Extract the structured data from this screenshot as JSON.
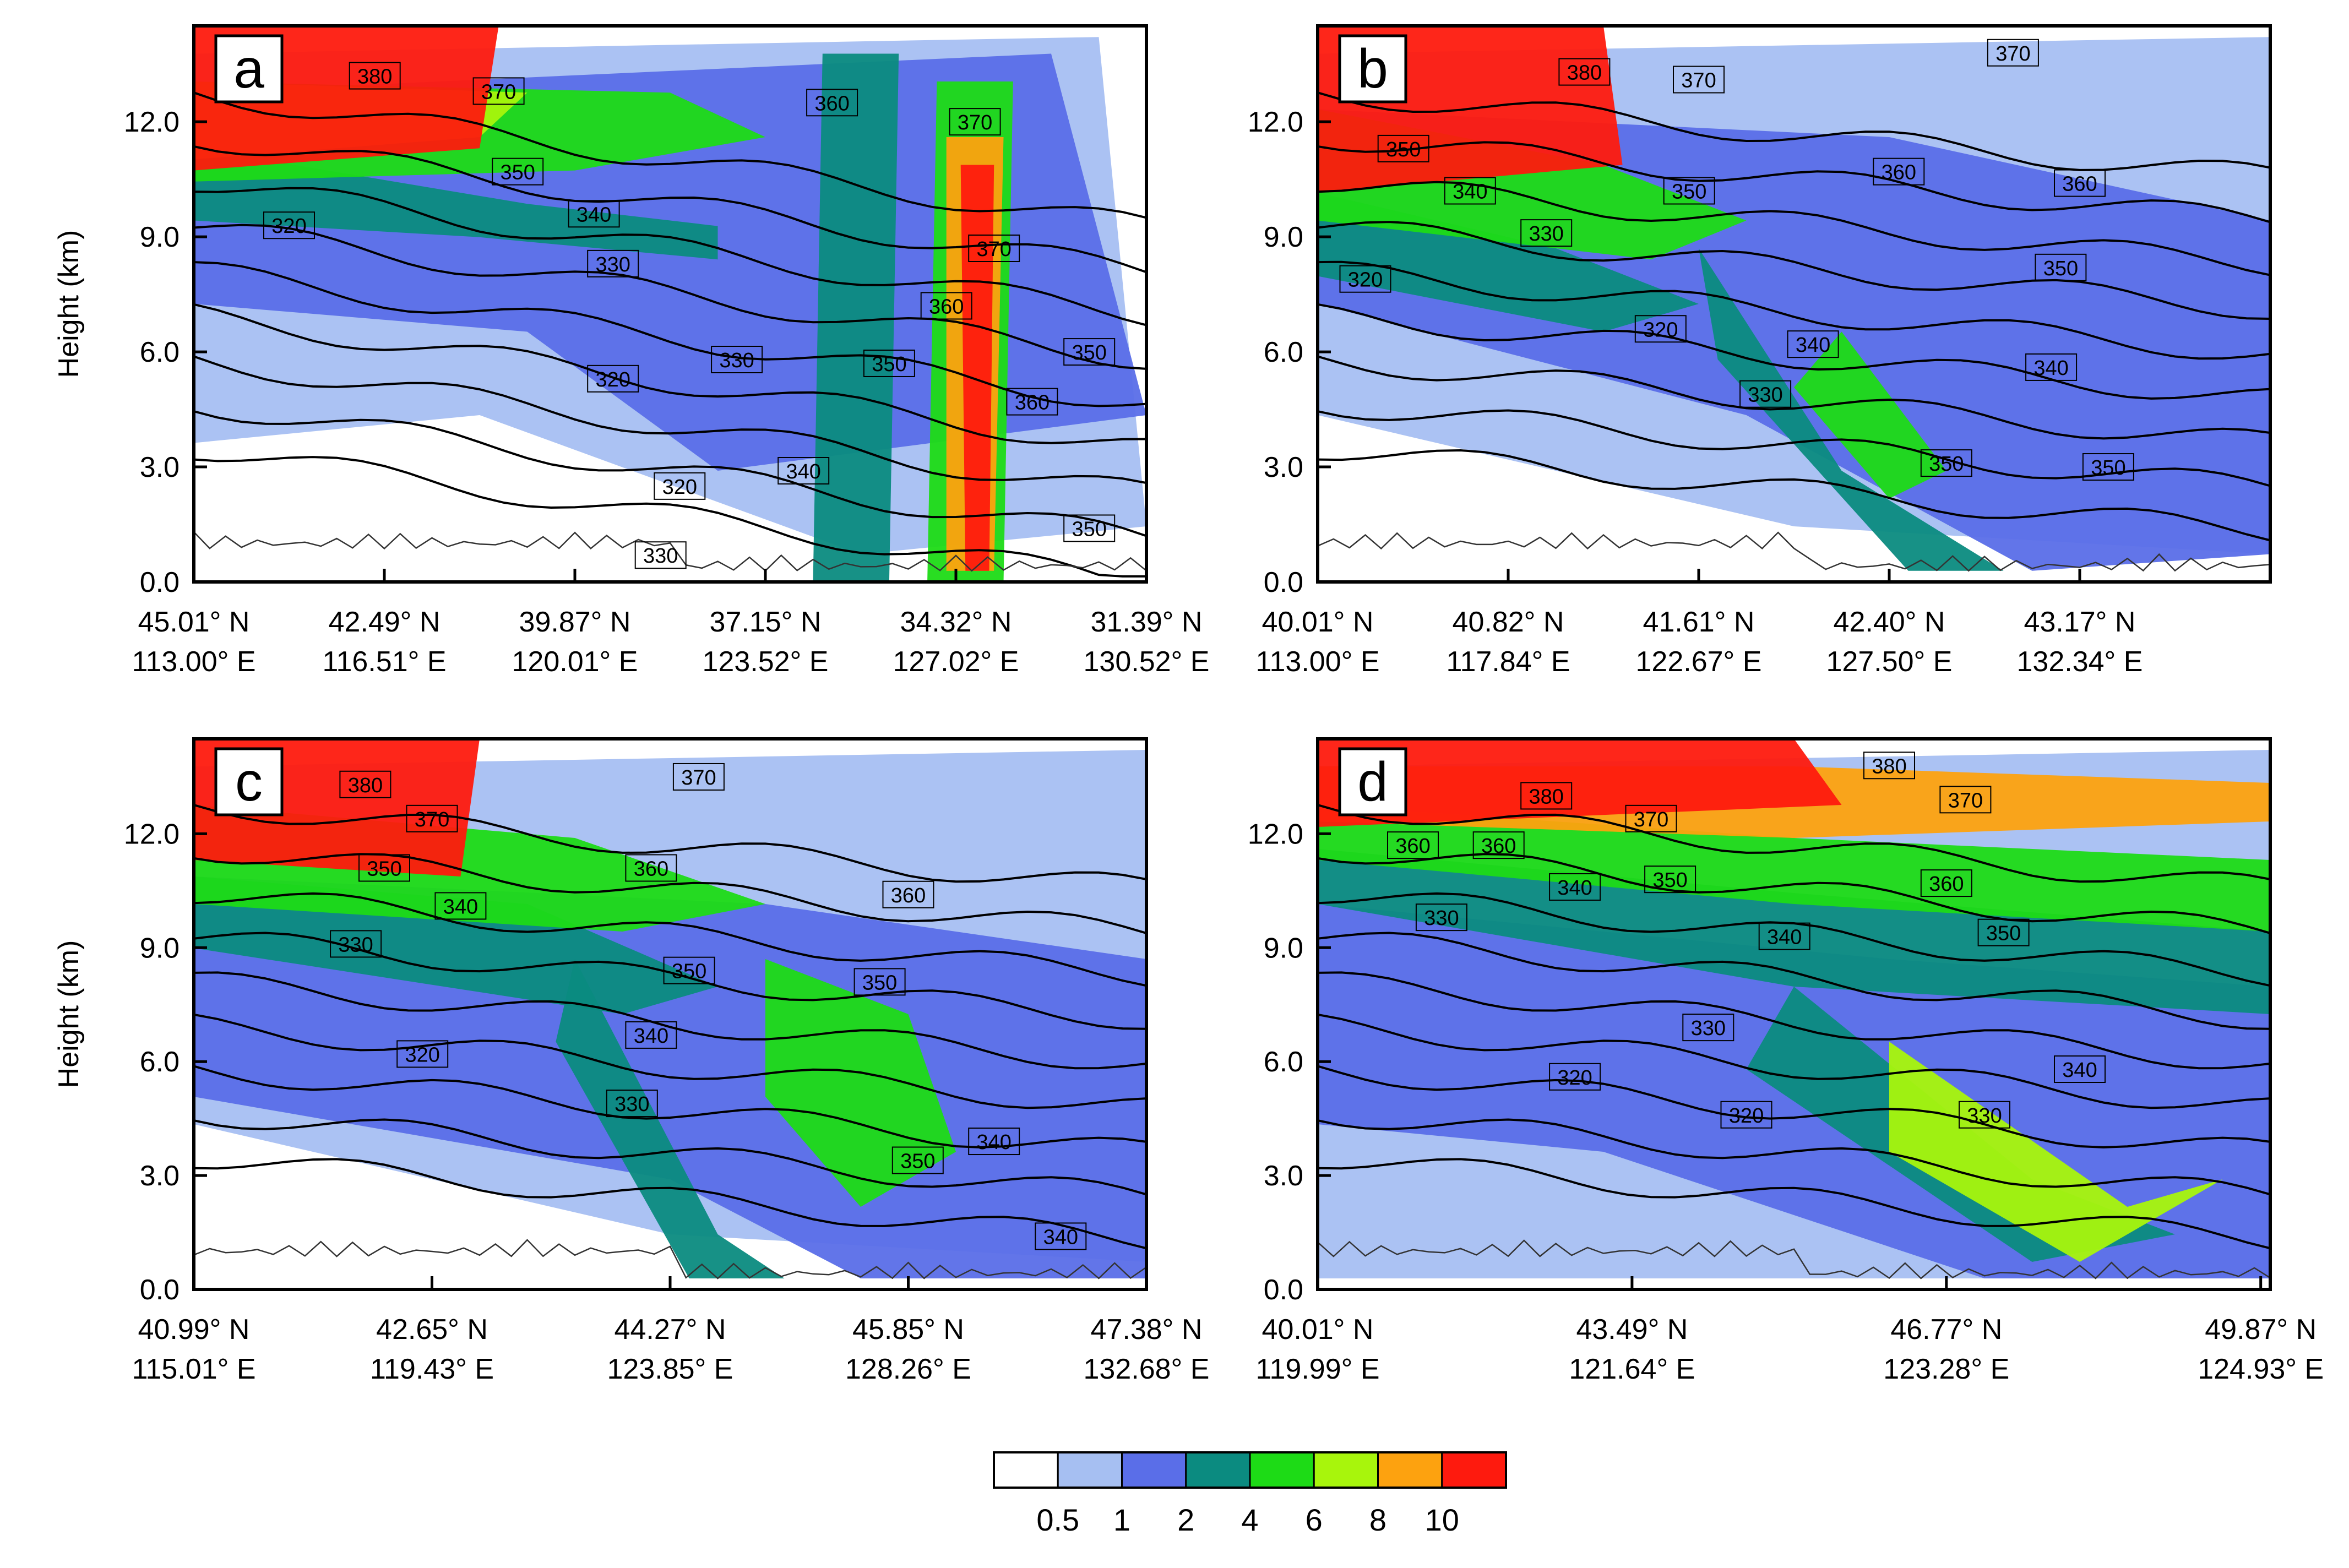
{
  "chart_data": [
    {
      "type": "heatmap",
      "panel_label": "a",
      "ylabel": "Height (km)",
      "ylim": [
        0,
        14.5
      ],
      "y_ticks": [
        "0.0",
        "3.0",
        "6.0",
        "9.0",
        "12.0"
      ],
      "y_tick_values": [
        0,
        3,
        6,
        9,
        12
      ],
      "x_ticks": [
        {
          "lat": "45.01° N",
          "lon": "113.00° E"
        },
        {
          "lat": "42.49° N",
          "lon": "116.51° E"
        },
        {
          "lat": "39.87° N",
          "lon": "120.01° E"
        },
        {
          "lat": "37.15° N",
          "lon": "123.52° E"
        },
        {
          "lat": "34.32° N",
          "lon": "127.02° E"
        },
        {
          "lat": "31.39° N",
          "lon": "130.52° E"
        }
      ],
      "x_tick_fractions": [
        0,
        0.2,
        0.4,
        0.6,
        0.8,
        1.0
      ],
      "contour_labels": [
        {
          "text": "380",
          "x": 0.19,
          "y": 13.2
        },
        {
          "text": "370",
          "x": 0.32,
          "y": 12.8
        },
        {
          "text": "360",
          "x": 0.67,
          "y": 12.5
        },
        {
          "text": "370",
          "x": 0.82,
          "y": 12.0
        },
        {
          "text": "350",
          "x": 0.34,
          "y": 10.7
        },
        {
          "text": "340",
          "x": 0.42,
          "y": 9.6
        },
        {
          "text": "320",
          "x": 0.1,
          "y": 9.3
        },
        {
          "text": "330",
          "x": 0.44,
          "y": 8.3
        },
        {
          "text": "370",
          "x": 0.84,
          "y": 8.7
        },
        {
          "text": "360",
          "x": 0.79,
          "y": 7.2
        },
        {
          "text": "330",
          "x": 0.57,
          "y": 5.8
        },
        {
          "text": "350",
          "x": 0.73,
          "y": 5.7
        },
        {
          "text": "350",
          "x": 0.94,
          "y": 6.0
        },
        {
          "text": "320",
          "x": 0.44,
          "y": 5.3
        },
        {
          "text": "360",
          "x": 0.88,
          "y": 4.7
        },
        {
          "text": "340",
          "x": 0.64,
          "y": 2.9
        },
        {
          "text": "320",
          "x": 0.51,
          "y": 2.5
        },
        {
          "text": "350",
          "x": 0.94,
          "y": 1.4
        },
        {
          "text": "330",
          "x": 0.49,
          "y": 0.7
        }
      ]
    },
    {
      "type": "heatmap",
      "panel_label": "b",
      "ylabel": "",
      "ylim": [
        0,
        14.5
      ],
      "y_ticks": [
        "0.0",
        "3.0",
        "6.0",
        "9.0",
        "12.0"
      ],
      "y_tick_values": [
        0,
        3,
        6,
        9,
        12
      ],
      "x_ticks": [
        {
          "lat": "40.01° N",
          "lon": "113.00° E"
        },
        {
          "lat": "40.82° N",
          "lon": "117.84° E"
        },
        {
          "lat": "41.61° N",
          "lon": "122.67° E"
        },
        {
          "lat": "42.40° N",
          "lon": "127.50° E"
        },
        {
          "lat": "43.17° N",
          "lon": "132.34° E"
        }
      ],
      "x_tick_fractions": [
        0,
        0.2,
        0.4,
        0.6,
        0.8
      ],
      "contour_labels": [
        {
          "text": "370",
          "x": 0.73,
          "y": 13.8
        },
        {
          "text": "380",
          "x": 0.28,
          "y": 13.3
        },
        {
          "text": "370",
          "x": 0.4,
          "y": 13.1
        },
        {
          "text": "350",
          "x": 0.09,
          "y": 11.3
        },
        {
          "text": "360",
          "x": 0.61,
          "y": 10.7
        },
        {
          "text": "360",
          "x": 0.8,
          "y": 10.4
        },
        {
          "text": "340",
          "x": 0.16,
          "y": 10.2
        },
        {
          "text": "350",
          "x": 0.39,
          "y": 10.2
        },
        {
          "text": "330",
          "x": 0.24,
          "y": 9.1
        },
        {
          "text": "350",
          "x": 0.78,
          "y": 8.2
        },
        {
          "text": "320",
          "x": 0.05,
          "y": 7.9
        },
        {
          "text": "320",
          "x": 0.36,
          "y": 6.6
        },
        {
          "text": "340",
          "x": 0.52,
          "y": 6.2
        },
        {
          "text": "340",
          "x": 0.77,
          "y": 5.6
        },
        {
          "text": "330",
          "x": 0.47,
          "y": 4.9
        },
        {
          "text": "350",
          "x": 0.66,
          "y": 3.1
        },
        {
          "text": "350",
          "x": 0.83,
          "y": 3.0
        }
      ]
    },
    {
      "type": "heatmap",
      "panel_label": "c",
      "ylabel": "Height (km)",
      "ylim": [
        0,
        14.5
      ],
      "y_ticks": [
        "0.0",
        "3.0",
        "6.0",
        "9.0",
        "12.0"
      ],
      "y_tick_values": [
        0,
        3,
        6,
        9,
        12
      ],
      "x_ticks": [
        {
          "lat": "40.99° N",
          "lon": "115.01° E"
        },
        {
          "lat": "42.65° N",
          "lon": "119.43° E"
        },
        {
          "lat": "44.27° N",
          "lon": "123.85° E"
        },
        {
          "lat": "45.85° N",
          "lon": "128.26° E"
        },
        {
          "lat": "47.38° N",
          "lon": "132.68° E"
        }
      ],
      "x_tick_fractions": [
        0,
        0.25,
        0.5,
        0.75,
        1.0
      ],
      "contour_labels": [
        {
          "text": "370",
          "x": 0.53,
          "y": 13.5
        },
        {
          "text": "380",
          "x": 0.18,
          "y": 13.3
        },
        {
          "text": "370",
          "x": 0.25,
          "y": 12.4
        },
        {
          "text": "350",
          "x": 0.2,
          "y": 11.1
        },
        {
          "text": "360",
          "x": 0.48,
          "y": 11.1
        },
        {
          "text": "360",
          "x": 0.75,
          "y": 10.4
        },
        {
          "text": "340",
          "x": 0.28,
          "y": 10.1
        },
        {
          "text": "330",
          "x": 0.17,
          "y": 9.1
        },
        {
          "text": "350",
          "x": 0.52,
          "y": 8.4
        },
        {
          "text": "350",
          "x": 0.72,
          "y": 8.1
        },
        {
          "text": "340",
          "x": 0.48,
          "y": 6.7
        },
        {
          "text": "320",
          "x": 0.24,
          "y": 6.2
        },
        {
          "text": "330",
          "x": 0.46,
          "y": 4.9
        },
        {
          "text": "340",
          "x": 0.84,
          "y": 3.9
        },
        {
          "text": "350",
          "x": 0.76,
          "y": 3.4
        },
        {
          "text": "340",
          "x": 0.91,
          "y": 1.4
        }
      ]
    },
    {
      "type": "heatmap",
      "panel_label": "d",
      "ylabel": "",
      "ylim": [
        0,
        14.5
      ],
      "y_ticks": [
        "0.0",
        "3.0",
        "6.0",
        "9.0",
        "12.0"
      ],
      "y_tick_values": [
        0,
        3,
        6,
        9,
        12
      ],
      "x_ticks": [
        {
          "lat": "40.01° N",
          "lon": "119.99° E"
        },
        {
          "lat": "43.49° N",
          "lon": "121.64° E"
        },
        {
          "lat": "46.77° N",
          "lon": "123.28° E"
        },
        {
          "lat": "49.87° N",
          "lon": "124.93° E"
        }
      ],
      "x_tick_fractions": [
        0,
        0.33,
        0.66,
        0.99
      ],
      "contour_labels": [
        {
          "text": "380",
          "x": 0.6,
          "y": 13.8
        },
        {
          "text": "380",
          "x": 0.24,
          "y": 13.0
        },
        {
          "text": "370",
          "x": 0.35,
          "y": 12.4
        },
        {
          "text": "370",
          "x": 0.68,
          "y": 12.9
        },
        {
          "text": "360",
          "x": 0.1,
          "y": 11.7
        },
        {
          "text": "360",
          "x": 0.19,
          "y": 11.7
        },
        {
          "text": "340",
          "x": 0.27,
          "y": 10.6
        },
        {
          "text": "350",
          "x": 0.37,
          "y": 10.8
        },
        {
          "text": "360",
          "x": 0.66,
          "y": 10.7
        },
        {
          "text": "330",
          "x": 0.13,
          "y": 9.8
        },
        {
          "text": "350",
          "x": 0.72,
          "y": 9.4
        },
        {
          "text": "340",
          "x": 0.49,
          "y": 9.3
        },
        {
          "text": "330",
          "x": 0.41,
          "y": 6.9
        },
        {
          "text": "340",
          "x": 0.8,
          "y": 5.8
        },
        {
          "text": "320",
          "x": 0.27,
          "y": 5.6
        },
        {
          "text": "320",
          "x": 0.45,
          "y": 4.6
        },
        {
          "text": "330",
          "x": 0.7,
          "y": 4.6
        }
      ]
    }
  ],
  "colorbar": {
    "labels": [
      "0.5",
      "1",
      "2",
      "4",
      "6",
      "8",
      "10"
    ],
    "colors": [
      "#ffffff",
      "#a6bff2",
      "#5a6ee8",
      "#0b8b80",
      "#1ddb16",
      "#a8f50c",
      "#fda20f",
      "#fe1a0e"
    ]
  }
}
